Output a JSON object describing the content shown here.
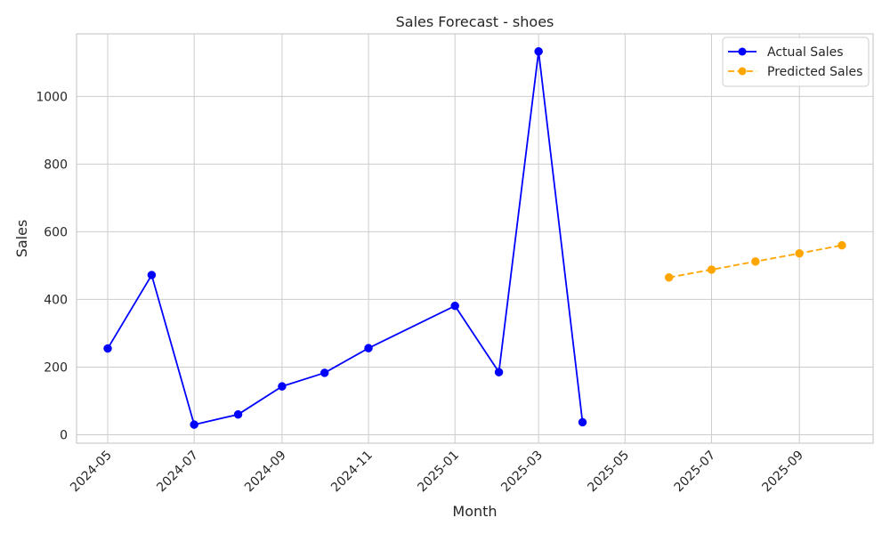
{
  "chart_data": {
    "type": "line",
    "title": "Sales Forecast - shoes",
    "xlabel": "Month",
    "ylabel": "Sales",
    "xlim": [
      "2024-04-09",
      "2025-10-23"
    ],
    "ylim": [
      -25,
      1185
    ],
    "x_ticks": [
      "2024-05",
      "2024-07",
      "2024-09",
      "2024-11",
      "2025-01",
      "2025-03",
      "2025-05",
      "2025-07",
      "2025-09"
    ],
    "y_ticks": [
      0,
      200,
      400,
      600,
      800,
      1000
    ],
    "grid": true,
    "legend_position": "upper right",
    "series": [
      {
        "name": "Actual Sales",
        "color": "#0000ff",
        "line_style": "solid",
        "marker": "circle",
        "x": [
          "2024-05-01",
          "2024-06-01",
          "2024-07-01",
          "2024-08-01",
          "2024-09-01",
          "2024-10-01",
          "2024-11-01",
          "2025-01-01",
          "2025-02-01",
          "2025-03-01",
          "2025-04-01"
        ],
        "y": [
          255,
          472,
          30,
          60,
          143,
          183,
          256,
          381,
          185,
          1133,
          37
        ]
      },
      {
        "name": "Predicted Sales",
        "color": "#ffa500",
        "line_style": "dashed",
        "marker": "circle",
        "x": [
          "2025-06-01",
          "2025-07-01",
          "2025-08-01",
          "2025-09-01",
          "2025-10-01"
        ],
        "y": [
          465,
          488,
          512,
          536,
          560
        ]
      }
    ]
  }
}
